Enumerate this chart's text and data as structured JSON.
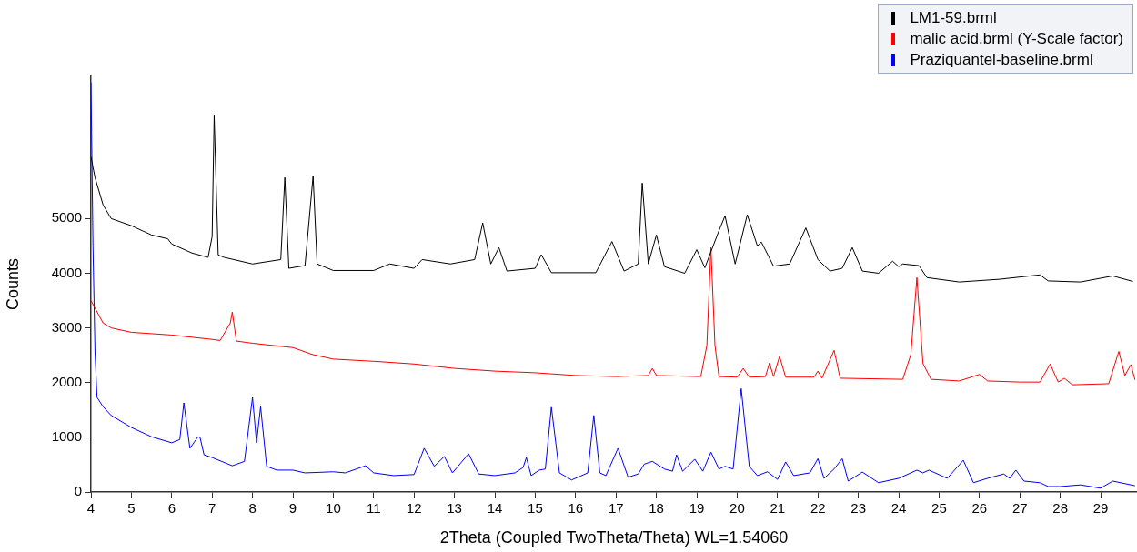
{
  "chart_data": {
    "type": "line",
    "xlabel": "2Theta (Coupled TwoTheta/Theta) WL=1.54060",
    "ylabel": "Counts",
    "xlim": [
      4,
      29.9
    ],
    "ylim": [
      0,
      7600
    ],
    "xticks": [
      4,
      5,
      6,
      7,
      8,
      9,
      10,
      11,
      12,
      13,
      14,
      15,
      16,
      17,
      18,
      19,
      20,
      21,
      22,
      23,
      24,
      25,
      26,
      27,
      28,
      29
    ],
    "yticks": [
      0,
      1000,
      2000,
      3000,
      4000,
      5000
    ],
    "grid": false,
    "legend": "top right",
    "marker": "none",
    "line_style": "solid",
    "series": [
      {
        "name": "LM1-59.brml",
        "color": "#000000",
        "x": [
          4,
          4.1,
          4.3,
          4.5,
          5,
          5.5,
          5.9,
          6,
          6.5,
          6.9,
          7,
          7.05,
          7.15,
          7.3,
          8,
          8.7,
          8.8,
          8.9,
          9.3,
          9.5,
          9.6,
          10,
          11,
          11.4,
          12,
          12.2,
          12.9,
          13.5,
          13.7,
          13.9,
          14.1,
          14.3,
          15,
          15.15,
          15.4,
          16.5,
          16.9,
          17.2,
          17.55,
          17.65,
          17.8,
          18,
          18.2,
          18.7,
          19,
          19.2,
          19.55,
          19.7,
          19.95,
          20.25,
          20.5,
          20.6,
          20.9,
          21.3,
          21.7,
          22,
          22.3,
          22.6,
          22.85,
          23.1,
          23.5,
          23.85,
          24,
          24.1,
          24.5,
          24.7,
          25.5,
          26.5,
          27.5,
          27.7,
          28.5,
          29.3,
          29.8
        ],
        "values": [
          6130,
          5750,
          5250,
          5000,
          4870,
          4700,
          4630,
          4535,
          4370,
          4290,
          4670,
          6880,
          4335,
          4290,
          4170,
          4250,
          5750,
          4090,
          4140,
          5780,
          4170,
          4050,
          4050,
          4170,
          4090,
          4250,
          4170,
          4250,
          4920,
          4170,
          4470,
          4040,
          4090,
          4340,
          4010,
          4010,
          4580,
          4040,
          4170,
          5650,
          4170,
          4700,
          4120,
          4000,
          4430,
          4100,
          4780,
          5050,
          4170,
          5070,
          4500,
          4570,
          4130,
          4170,
          4830,
          4250,
          4040,
          4090,
          4470,
          4040,
          4000,
          4220,
          4120,
          4170,
          4140,
          3920,
          3840,
          3890,
          3970,
          3860,
          3840,
          3950,
          3850
        ]
      },
      {
        "name": "malic acid.brml (Y-Scale factor)",
        "color": "#ff0000",
        "x": [
          4,
          4.3,
          4.5,
          5,
          6,
          7,
          7.2,
          7.45,
          7.5,
          7.6,
          8,
          9,
          9.5,
          10,
          11,
          12,
          13,
          14,
          15,
          16,
          17,
          17.8,
          17.9,
          18,
          19.1,
          19.25,
          19.35,
          19.45,
          19.55,
          20,
          20.15,
          20.3,
          20.7,
          20.8,
          20.9,
          21.05,
          21.2,
          21.9,
          22,
          22.1,
          22.4,
          22.55,
          24.1,
          24.3,
          24.45,
          24.6,
          24.8,
          25.5,
          26,
          26.2,
          27,
          27.5,
          27.75,
          27.95,
          28.1,
          28.3,
          29.2,
          29.45,
          29.6,
          29.75,
          29.85
        ],
        "values": [
          3500,
          3090,
          3000,
          2920,
          2870,
          2790,
          2770,
          3090,
          3290,
          2760,
          2720,
          2640,
          2510,
          2430,
          2390,
          2340,
          2260,
          2210,
          2180,
          2130,
          2110,
          2130,
          2260,
          2130,
          2110,
          2680,
          4470,
          2680,
          2110,
          2100,
          2260,
          2100,
          2110,
          2360,
          2110,
          2480,
          2100,
          2100,
          2210,
          2080,
          2590,
          2080,
          2060,
          2510,
          3920,
          2350,
          2060,
          2030,
          2150,
          2030,
          2010,
          2010,
          2340,
          2010,
          2080,
          1960,
          1980,
          2570,
          2130,
          2330,
          2050
        ]
      },
      {
        "name": "Praziquantel-baseline.brml",
        "color": "#0000ff",
        "x": [
          4,
          4.05,
          4.1,
          4.15,
          4.3,
          4.5,
          5,
          5.5,
          6,
          6.2,
          6.3,
          6.45,
          6.65,
          6.7,
          6.8,
          7,
          7.5,
          7.8,
          8,
          8.1,
          8.2,
          8.35,
          8.6,
          9,
          9.3,
          10,
          10.3,
          10.8,
          11,
          11.5,
          12,
          12.25,
          12.5,
          12.75,
          12.95,
          13.35,
          13.6,
          14,
          14.5,
          14.7,
          14.78,
          14.9,
          15.1,
          15.25,
          15.4,
          15.6,
          15.9,
          16.3,
          16.45,
          16.6,
          16.75,
          17.05,
          17.3,
          17.55,
          17.7,
          17.9,
          18.2,
          18.4,
          18.5,
          18.65,
          18.95,
          19.15,
          19.35,
          19.55,
          19.7,
          19.9,
          20.1,
          20.3,
          20.5,
          20.75,
          21,
          21.2,
          21.4,
          21.8,
          22,
          22.15,
          22.4,
          22.6,
          22.75,
          23.1,
          23.5,
          24,
          24.45,
          24.6,
          24.75,
          25.2,
          25.6,
          25.85,
          26.2,
          26.6,
          26.75,
          26.9,
          27.1,
          27.5,
          27.7,
          28,
          28.5,
          29,
          29.3,
          29.85
        ],
        "values": [
          7490,
          4500,
          2560,
          1730,
          1560,
          1400,
          1180,
          1010,
          900,
          960,
          1630,
          800,
          1010,
          1000,
          680,
          630,
          480,
          560,
          1730,
          900,
          1560,
          470,
          400,
          400,
          350,
          370,
          350,
          480,
          350,
          300,
          320,
          800,
          470,
          650,
          350,
          700,
          330,
          300,
          350,
          450,
          630,
          300,
          400,
          420,
          1550,
          350,
          220,
          350,
          1400,
          350,
          300,
          800,
          270,
          330,
          510,
          560,
          420,
          380,
          680,
          380,
          600,
          380,
          730,
          420,
          470,
          420,
          1890,
          470,
          300,
          370,
          230,
          550,
          300,
          350,
          610,
          250,
          420,
          610,
          200,
          365,
          170,
          250,
          400,
          350,
          400,
          250,
          580,
          170,
          250,
          330,
          250,
          400,
          200,
          170,
          100,
          100,
          130,
          70,
          200,
          115
        ]
      }
    ]
  }
}
